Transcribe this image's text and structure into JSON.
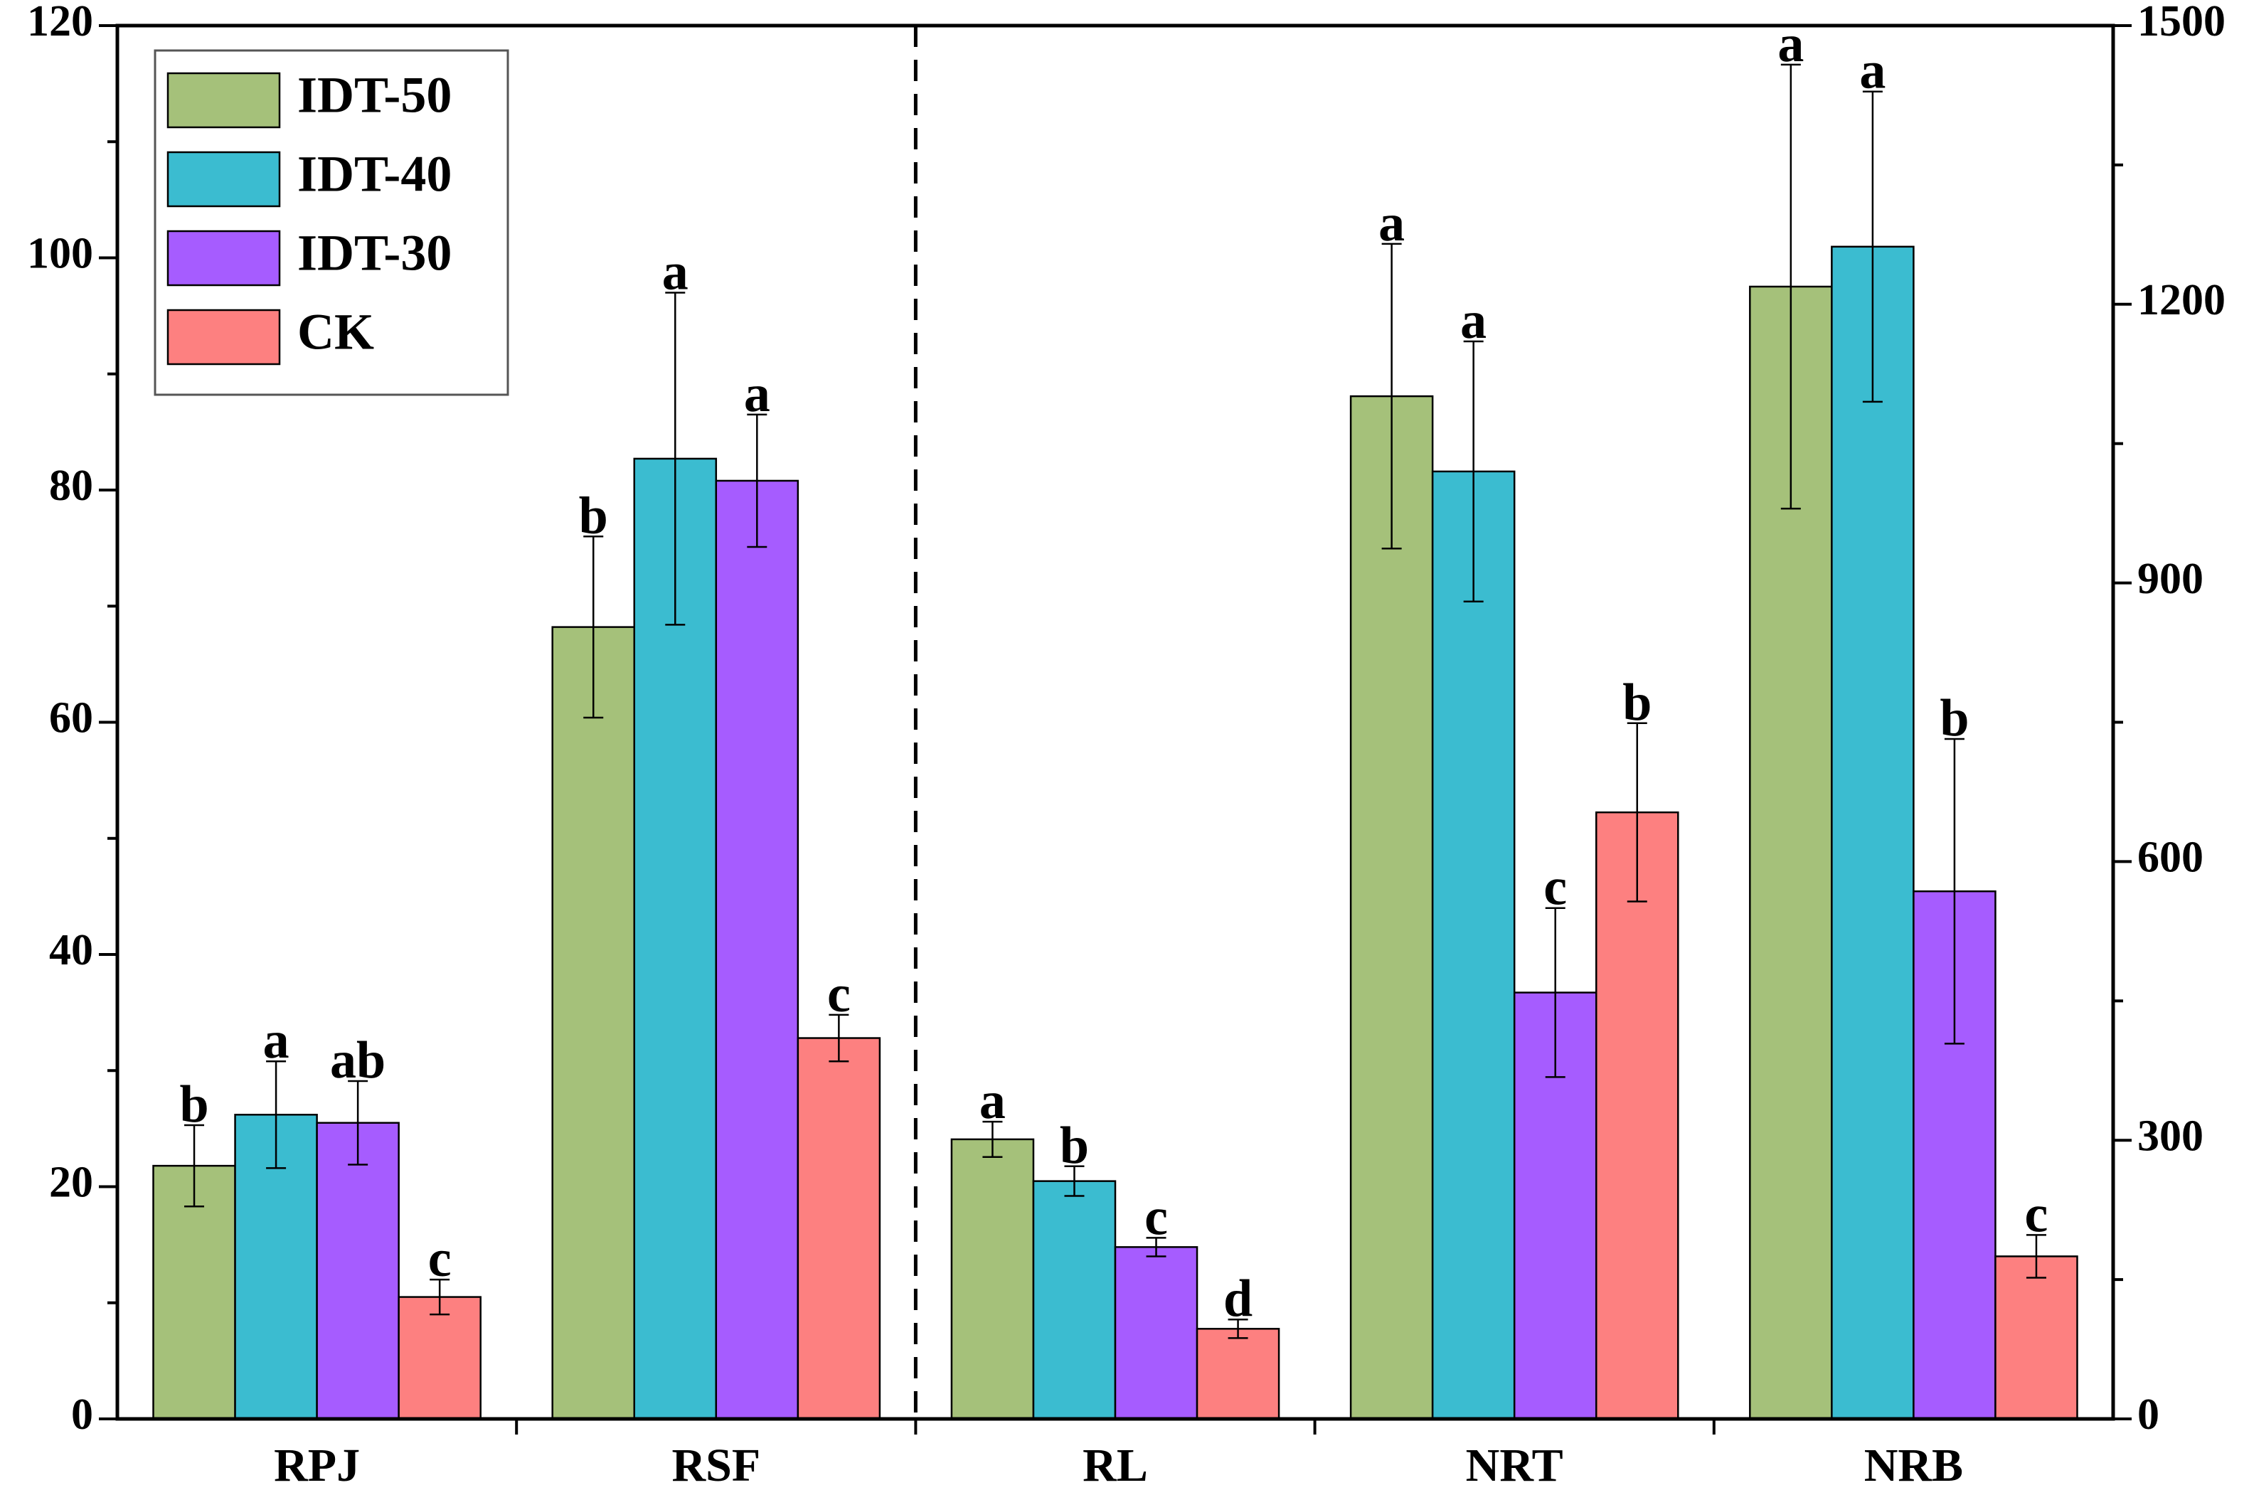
{
  "chart_data": {
    "type": "bar",
    "categories": [
      "RPJ",
      "RSF",
      "RL",
      "NRT",
      "NRB"
    ],
    "category_axis": [
      "y",
      "y",
      "y2",
      "y2",
      "y2"
    ],
    "ylim": [
      0,
      120
    ],
    "yticks": [
      0,
      20,
      40,
      60,
      80,
      100,
      120
    ],
    "y2lim": [
      0,
      1500
    ],
    "y2ticks": [
      0,
      300,
      600,
      900,
      1200,
      1500
    ],
    "legend": "upper left",
    "series": [
      {
        "name": "IDT-50",
        "color": "#a5c17a",
        "values": [
          21.8,
          68.2,
          301,
          1101,
          1219
        ],
        "errors": [
          3.5,
          7.8,
          19,
          164,
          239
        ],
        "letters": [
          "b",
          "b",
          "a",
          "a",
          "a"
        ]
      },
      {
        "name": "IDT-40",
        "color": "#3bbcd0",
        "values": [
          26.2,
          82.7,
          256,
          1020,
          1262
        ],
        "errors": [
          4.6,
          14.3,
          16,
          140,
          167
        ],
        "letters": [
          "a",
          "a",
          "b",
          "a",
          "a"
        ]
      },
      {
        "name": "IDT-30",
        "color": "#a65cff",
        "values": [
          25.5,
          80.8,
          185,
          459,
          568
        ],
        "errors": [
          3.6,
          5.7,
          10,
          91,
          164
        ],
        "letters": [
          "ab",
          "a",
          "c",
          "c",
          "b"
        ]
      },
      {
        "name": "CK",
        "color": "#fd8080",
        "values": [
          10.5,
          32.8,
          97,
          653,
          175
        ],
        "errors": [
          1.5,
          2.0,
          10,
          96,
          23
        ],
        "letters": [
          "c",
          "c",
          "d",
          "b",
          "c"
        ]
      }
    ]
  }
}
